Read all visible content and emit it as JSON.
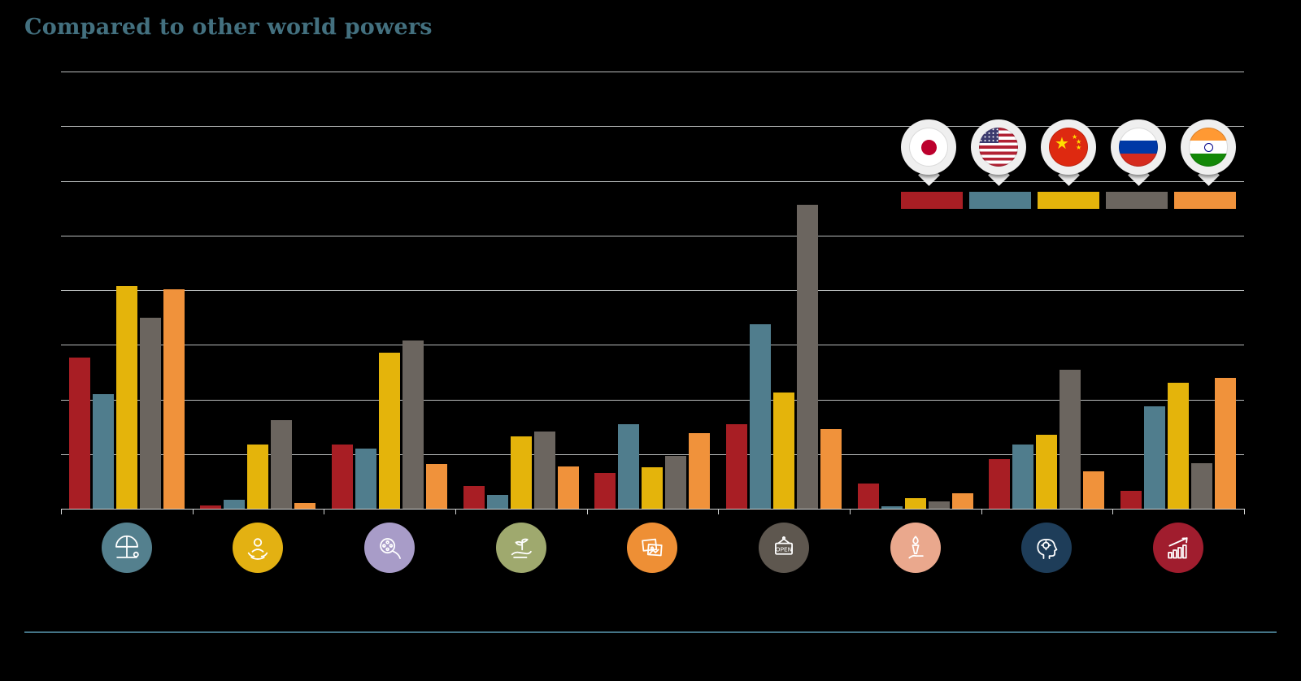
{
  "title": "Compared to other world powers",
  "colors": {
    "background": "#000000",
    "title": "#43707f",
    "gridline": "#c3c6c6",
    "divider": "#447486"
  },
  "legend": {
    "position": "top-right",
    "items": [
      {
        "country": "Japan",
        "flag": "japan",
        "color": "#a81e24"
      },
      {
        "country": "United States",
        "flag": "usa",
        "color": "#507d8d"
      },
      {
        "country": "China",
        "flag": "china",
        "color": "#e4b40b"
      },
      {
        "country": "Russia",
        "flag": "russia",
        "color": "#6b655f"
      },
      {
        "country": "India",
        "flag": "india",
        "color": "#f0923b"
      }
    ]
  },
  "chart_data": {
    "type": "bar",
    "title": "Compared to other world powers",
    "categories": [
      "tourism-leisure",
      "people-welfare",
      "culture-film",
      "environment-growth",
      "media-images",
      "open-for-business",
      "heritage-torch",
      "innovation-mindset",
      "economic-growth"
    ],
    "series": [
      {
        "name": "Japan",
        "color": "#a81e24",
        "values": [
          13.8,
          0.3,
          5.9,
          2.1,
          3.3,
          7.7,
          2.3,
          4.5,
          1.6
        ]
      },
      {
        "name": "United States",
        "color": "#507d8d",
        "values": [
          10.5,
          0.8,
          5.5,
          1.3,
          7.7,
          16.9,
          0.2,
          5.9,
          9.4
        ]
      },
      {
        "name": "China",
        "color": "#e4b40b",
        "values": [
          20.4,
          5.9,
          14.3,
          6.6,
          3.8,
          10.6,
          1.0,
          6.8,
          11.5
        ]
      },
      {
        "name": "Russia",
        "color": "#6b655f",
        "values": [
          17.5,
          8.1,
          15.4,
          7.1,
          4.8,
          27.8,
          0.7,
          12.7,
          4.2
        ]
      },
      {
        "name": "India",
        "color": "#f0923b",
        "values": [
          20.1,
          0.5,
          4.1,
          3.9,
          6.9,
          7.3,
          1.4,
          3.4,
          12.0
        ]
      }
    ],
    "ylim": [
      0,
      40
    ],
    "gridline_interval": 5,
    "grid": true,
    "y_tick_labels_visible": false,
    "legend_position": "top-right"
  },
  "category_icons": [
    {
      "name": "beach-umbrella-icon",
      "circle_color": "#54808e",
      "text": ""
    },
    {
      "name": "person-in-hands-icon",
      "circle_color": "#e3b112",
      "text": ""
    },
    {
      "name": "film-reel-icon",
      "circle_color": "#a89cc8",
      "text": ""
    },
    {
      "name": "plant-in-hand-icon",
      "circle_color": "#9fa96e",
      "text": ""
    },
    {
      "name": "photos-icon",
      "circle_color": "#ee8f35",
      "text": ""
    },
    {
      "name": "open-sign-icon",
      "circle_color": "#5e574f",
      "text": "OPEN"
    },
    {
      "name": "torch-in-hand-icon",
      "circle_color": "#eaa88d",
      "text": ""
    },
    {
      "name": "head-gears-icon",
      "circle_color": "#1e3d59",
      "text": ""
    },
    {
      "name": "growth-chart-icon",
      "circle_color": "#a01d2e",
      "text": ""
    }
  ]
}
